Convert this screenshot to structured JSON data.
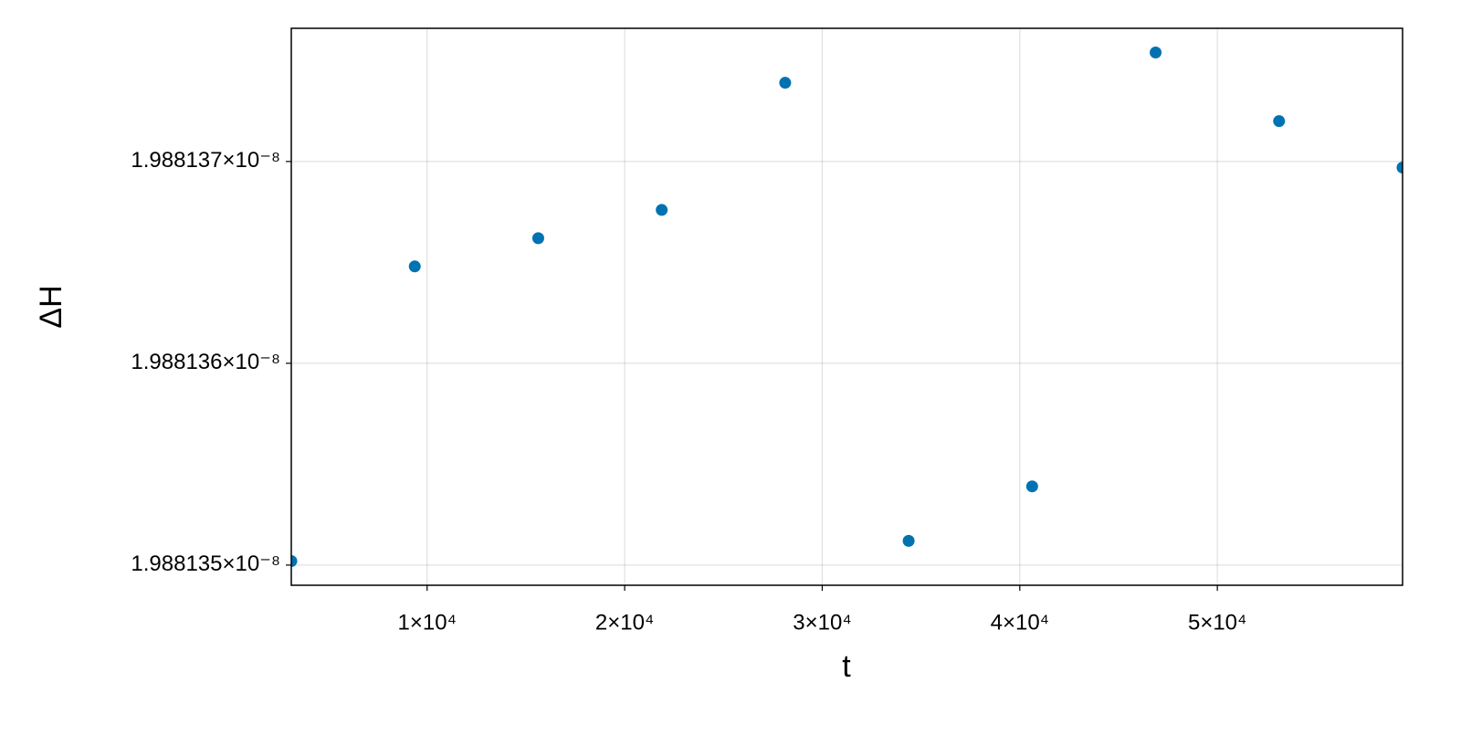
{
  "chart_data": {
    "type": "scatter",
    "x_label": "t",
    "y_label": "ΔH",
    "series": [
      {
        "name": "ΔH",
        "color": "#0072b2",
        "x": [
          3125,
          9375,
          15625,
          21875,
          28125,
          34375,
          40625,
          46875,
          53125,
          59375
        ],
        "values": [
          1.98813502e-08,
          1.98813648e-08,
          1.98813662e-08,
          1.98813676e-08,
          1.98813739e-08,
          1.98813512e-08,
          1.98813539e-08,
          1.98813754e-08,
          1.9881372e-08,
          1.98813697e-08
        ]
      }
    ],
    "xlim": [
      3125,
      59375
    ],
    "xticks": [
      {
        "value": 10000,
        "label": "1×10⁴"
      },
      {
        "value": 20000,
        "label": "2×10⁴"
      },
      {
        "value": 30000,
        "label": "3×10⁴"
      },
      {
        "value": 40000,
        "label": "4×10⁴"
      },
      {
        "value": 50000,
        "label": "5×10⁴"
      }
    ],
    "ylim": [
      1.9881349e-08,
      1.98813766e-08
    ],
    "yticks": [
      {
        "value": 1.988135e-08,
        "label": "1.988135×10⁻⁸"
      },
      {
        "value": 1.988136e-08,
        "label": "1.988136×10⁻⁸"
      },
      {
        "value": 1.988137e-08,
        "label": "1.988137×10⁻⁸"
      }
    ],
    "grid": true
  }
}
